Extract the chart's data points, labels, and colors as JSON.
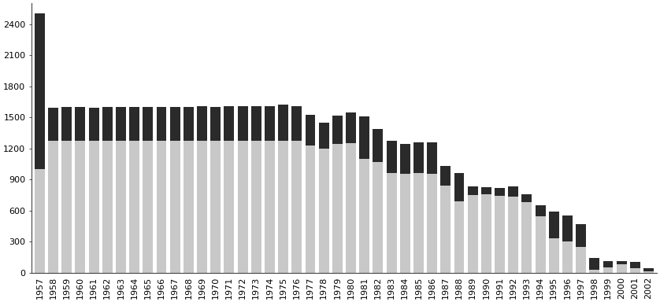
{
  "years": [
    1957,
    1958,
    1959,
    1960,
    1961,
    1962,
    1963,
    1964,
    1965,
    1966,
    1967,
    1968,
    1969,
    1970,
    1971,
    1972,
    1973,
    1974,
    1975,
    1976,
    1977,
    1978,
    1979,
    1980,
    1981,
    1982,
    1983,
    1984,
    1985,
    1986,
    1987,
    1988,
    1989,
    1990,
    1991,
    1992,
    1993,
    1994,
    1995,
    1996,
    1997,
    1998,
    1999,
    2000,
    2001,
    2002
  ],
  "direct": [
    1000,
    1270,
    1270,
    1270,
    1270,
    1270,
    1270,
    1270,
    1270,
    1270,
    1270,
    1270,
    1270,
    1270,
    1270,
    1270,
    1270,
    1270,
    1270,
    1270,
    1230,
    1200,
    1240,
    1250,
    1100,
    1070,
    960,
    950,
    960,
    950,
    840,
    690,
    750,
    760,
    740,
    730,
    680,
    540,
    330,
    300,
    250,
    30,
    50,
    80,
    40,
    15
  ],
  "outsourced": [
    1500,
    320,
    330,
    330,
    320,
    330,
    330,
    330,
    330,
    330,
    330,
    330,
    340,
    330,
    340,
    340,
    340,
    340,
    350,
    340,
    290,
    250,
    275,
    295,
    410,
    320,
    310,
    295,
    300,
    310,
    190,
    270,
    80,
    65,
    80,
    100,
    75,
    110,
    260,
    250,
    215,
    110,
    60,
    30,
    60,
    25
  ],
  "bar_color_direct": "#c8c8c8",
  "bar_color_outsourced": "#2a2a2a",
  "yticks": [
    0,
    300,
    600,
    900,
    1200,
    1500,
    1800,
    2100,
    2400
  ],
  "background_color": "#ffffff",
  "bar_width": 0.75
}
